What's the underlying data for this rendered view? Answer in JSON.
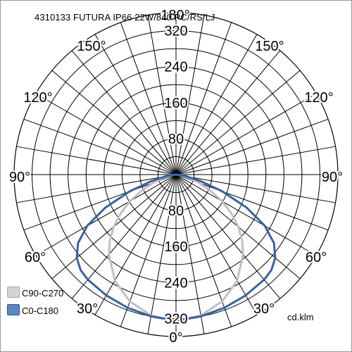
{
  "chart_data": {
    "type": "polar",
    "title": "4310133 FUTURA IP66 22W/840 PC/RS/LJ",
    "unit": "cd.klm",
    "radial_ticks": [
      "80",
      "160",
      "240",
      "320"
    ],
    "rmax": 360,
    "angle_labels": [
      "180°",
      "150°",
      "120°",
      "90°",
      "60°",
      "30°",
      "0°"
    ],
    "grid": true,
    "legend_position": "bottom-left",
    "series": [
      {
        "name": "C90-C270",
        "color": "#c0c0c0",
        "angles": [
          0,
          10,
          20,
          30,
          40,
          45,
          50,
          55,
          60,
          65,
          70,
          75,
          80,
          85,
          90
        ],
        "values": [
          325,
          318,
          300,
          272,
          232,
          208,
          181,
          150,
          118,
          84,
          55,
          30,
          12,
          4,
          0
        ]
      },
      {
        "name": "C0-C180",
        "color": "#3463a8",
        "angles": [
          0,
          10,
          20,
          30,
          40,
          45,
          50,
          55,
          60,
          65,
          70,
          75,
          80,
          85,
          90
        ],
        "values": [
          325,
          320,
          315,
          310,
          305,
          300,
          288,
          266,
          228,
          173,
          110,
          58,
          25,
          8,
          0
        ]
      }
    ]
  }
}
